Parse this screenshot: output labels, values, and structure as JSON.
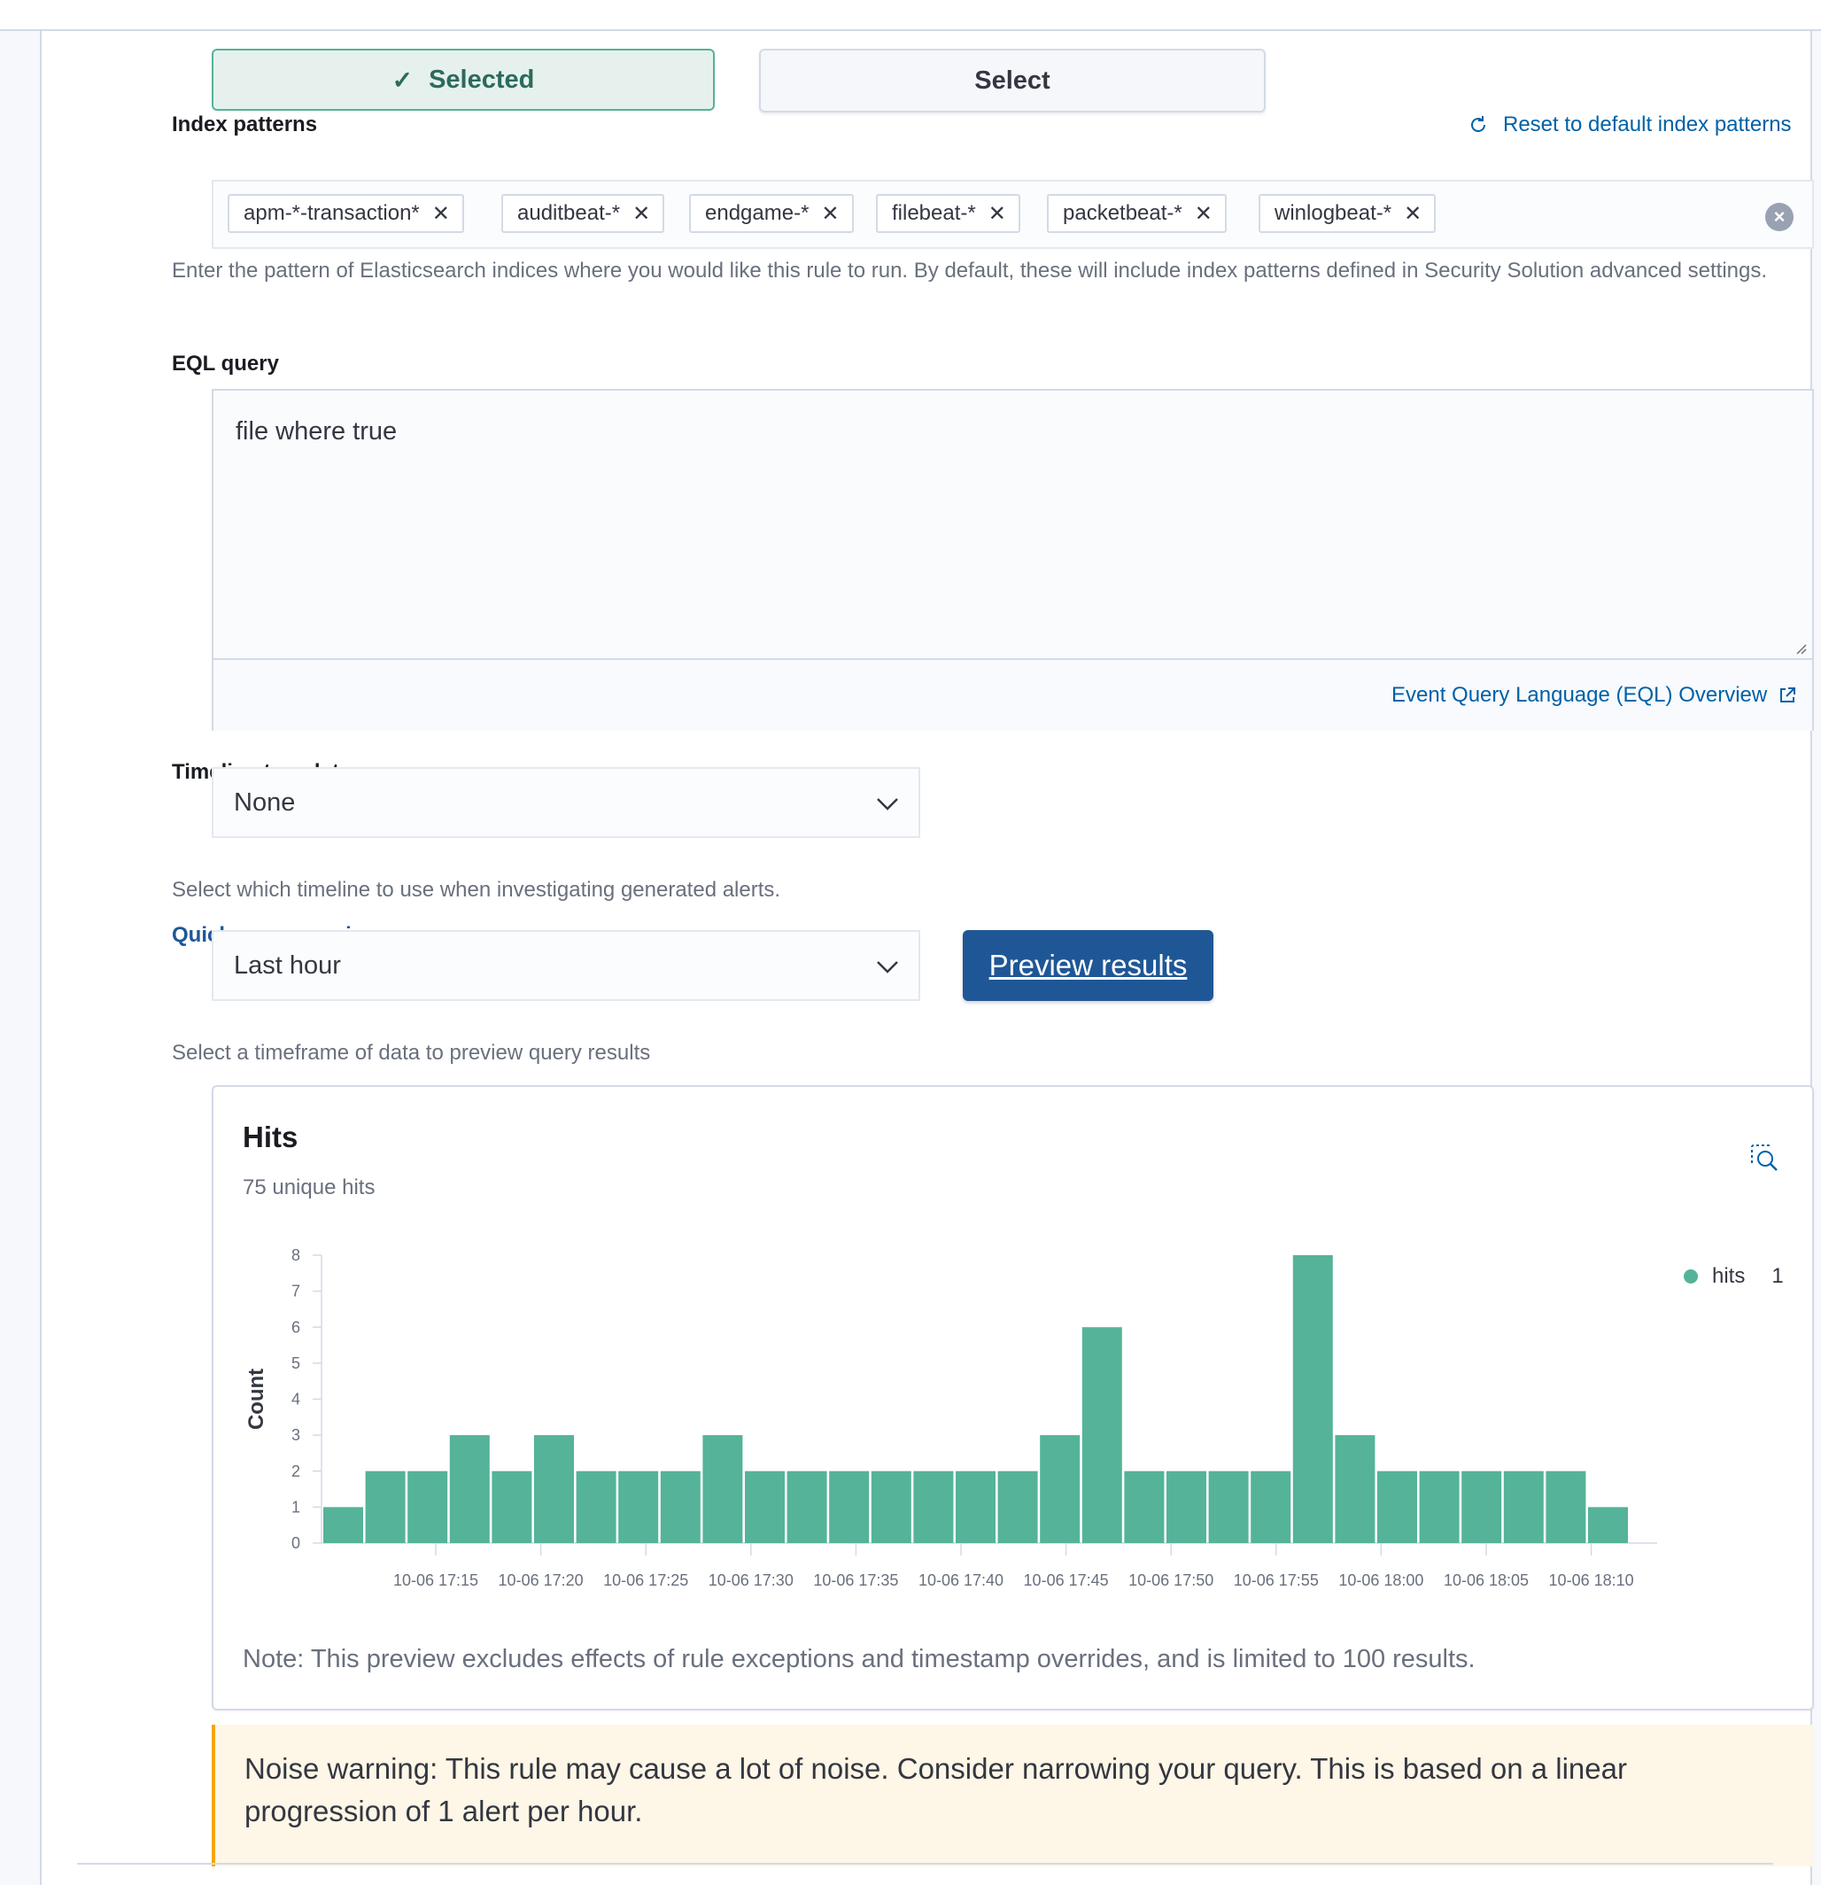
{
  "rule_type": {
    "selected_label": "Selected",
    "select_label": "Select"
  },
  "index_patterns": {
    "label": "Index patterns",
    "reset_link": "Reset to default index patterns",
    "patterns": [
      "apm-*-transaction*",
      "auditbeat-*",
      "endgame-*",
      "filebeat-*",
      "packetbeat-*",
      "winlogbeat-*"
    ],
    "help": "Enter the pattern of Elasticsearch indices where you would like this rule to run. By default, these will include index patterns defined in Security Solution advanced settings."
  },
  "eql": {
    "label": "EQL query",
    "value": "file where true",
    "overview_link": "Event Query Language (EQL) Overview"
  },
  "timeline_template": {
    "label": "Timeline template",
    "value": "None",
    "help": "Select which timeline to use when investigating generated alerts."
  },
  "quick_preview": {
    "label": "Quick query preview",
    "value": "Last hour",
    "button": "Preview results",
    "help": "Select a timeframe of data to preview query results"
  },
  "hits": {
    "title": "Hits",
    "subtitle": "75 unique hits",
    "note": "Note: This preview excludes effects of rule exceptions and timestamp overrides, and is limited to 100 results.",
    "legend_label": "hits",
    "legend_value": "1"
  },
  "chart_data": {
    "type": "bar",
    "ylabel": "Count",
    "xlabel": "",
    "ylim": [
      0,
      8
    ],
    "yticks": [
      0,
      1,
      2,
      3,
      4,
      5,
      6,
      7,
      8
    ],
    "xtick_labels": [
      "10-06 17:15",
      "10-06 17:20",
      "10-06 17:25",
      "10-06 17:30",
      "10-06 17:35",
      "10-06 17:40",
      "10-06 17:45",
      "10-06 17:50",
      "10-06 17:55",
      "10-06 18:00",
      "10-06 18:05",
      "10-06 18:10"
    ],
    "series": [
      {
        "name": "hits",
        "color": "#54b399",
        "values": [
          1,
          2,
          2,
          3,
          2,
          3,
          2,
          2,
          2,
          3,
          2,
          2,
          2,
          2,
          2,
          2,
          2,
          3,
          6,
          2,
          2,
          2,
          2,
          8,
          3,
          2,
          2,
          2,
          2,
          2,
          1
        ]
      }
    ],
    "legend_position": "top-right",
    "grid": false
  },
  "noise_warning": {
    "text": "Noise warning: This rule may cause a lot of noise. Consider narrowing your query. This is based on a linear progression of 1 alert per hour."
  },
  "colors": {
    "accent": "#54b399",
    "link": "#0061a6",
    "primary_button": "#1f5796",
    "warning": "#f5a700"
  }
}
